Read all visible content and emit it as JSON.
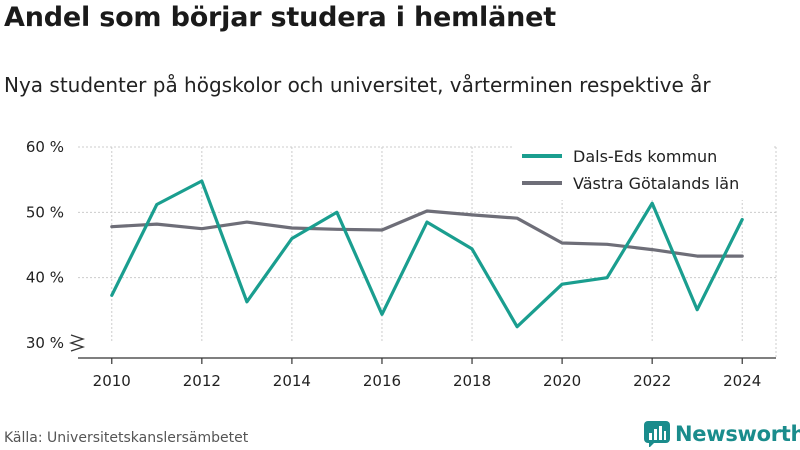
{
  "title": "Andel som börjar studera i hemlänet",
  "subtitle": "Nya studenter på högskolor och universitet, vårterminen respektive år",
  "source": "Källa: Universitetskanslersämbetet",
  "brand": "Newsworthy",
  "colors": {
    "brand": "#1a8c8c",
    "series1": "#1a9e8f",
    "series2": "#6e6e78",
    "grid": "#cccccc",
    "axis": "#333333"
  },
  "chart_data": {
    "type": "line",
    "x": [
      2010,
      2011,
      2012,
      2013,
      2014,
      2015,
      2016,
      2017,
      2018,
      2019,
      2020,
      2021,
      2022,
      2023,
      2024
    ],
    "x_ticks": [
      2010,
      2012,
      2014,
      2016,
      2018,
      2020,
      2022,
      2024
    ],
    "y_ticks": [
      30,
      40,
      50,
      60
    ],
    "y_tick_labels": [
      "30 %",
      "40 %",
      "50 %",
      "60 %"
    ],
    "ylim": [
      30,
      60
    ],
    "xlim": [
      2009.25,
      2024.75
    ],
    "axis_break": true,
    "grid": true,
    "legend_position": "top-right",
    "series": [
      {
        "name": "Dals-Eds kommun",
        "color": "#1a9e8f",
        "values": [
          37.3,
          51.2,
          54.8,
          36.3,
          46.0,
          50.0,
          34.4,
          48.5,
          44.4,
          32.5,
          39.0,
          40.0,
          51.4,
          35.1,
          48.9
        ]
      },
      {
        "name": "Västra Götalands län",
        "color": "#6e6e78",
        "values": [
          47.8,
          48.2,
          47.5,
          48.5,
          47.6,
          47.4,
          47.3,
          50.2,
          49.6,
          49.1,
          45.3,
          45.1,
          44.3,
          43.3,
          43.3
        ]
      }
    ]
  }
}
